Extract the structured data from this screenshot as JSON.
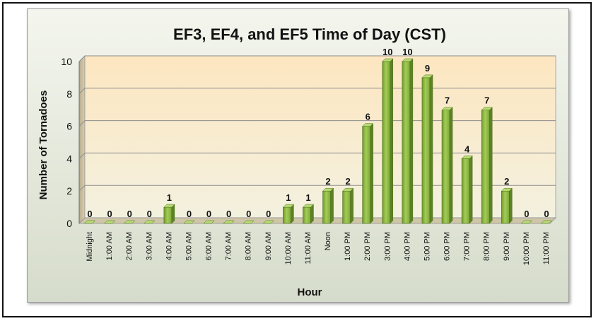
{
  "chart_data": {
    "type": "bar",
    "title": "EF3, EF4, and EF5 Time of Day (CST)",
    "xlabel": "Hour",
    "ylabel": "Number of Tornadoes",
    "ylim": [
      0,
      10
    ],
    "yticks": [
      0,
      2,
      4,
      6,
      8,
      10
    ],
    "grid": true,
    "legend": "none",
    "bar_color": "#8db542",
    "categories": [
      "Midnight",
      "1:00 AM",
      "2:00 AM",
      "3:00 AM",
      "4:00 AM",
      "5:00 AM",
      "6:00 AM",
      "7:00 AM",
      "8:00 AM",
      "9:00 AM",
      "10:00 AM",
      "11:00 AM",
      "Noon",
      "1:00 PM",
      "2:00 PM",
      "3:00 PM",
      "4:00 PM",
      "5:00 PM",
      "6:00 PM",
      "7:00 PM",
      "8:00 PM",
      "9:00 PM",
      "10:00 PM",
      "11:00 PM"
    ],
    "values": [
      0,
      0,
      0,
      0,
      1,
      0,
      0,
      0,
      0,
      0,
      1,
      1,
      2,
      2,
      6,
      10,
      10,
      9,
      7,
      4,
      7,
      2,
      0,
      0
    ]
  }
}
